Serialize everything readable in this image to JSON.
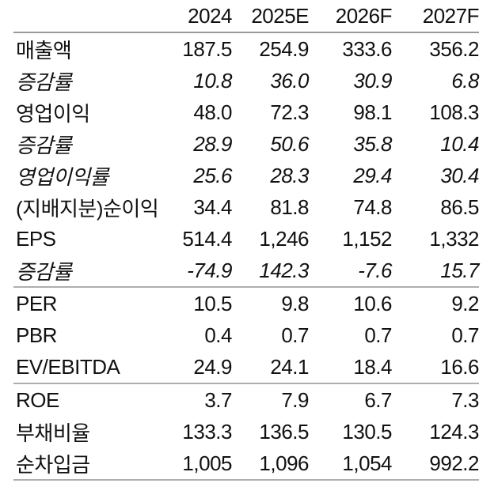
{
  "table": {
    "columns": [
      "",
      "2024",
      "2025E",
      "2026F",
      "2027F"
    ],
    "sections": [
      {
        "rows": [
          {
            "label": "매출액",
            "italic": false,
            "values": [
              "187.5",
              "254.9",
              "333.6",
              "356.2"
            ]
          },
          {
            "label": "증감률",
            "italic": true,
            "values": [
              "10.8",
              "36.0",
              "30.9",
              "6.8"
            ]
          },
          {
            "label": "영업이익",
            "italic": false,
            "values": [
              "48.0",
              "72.3",
              "98.1",
              "108.3"
            ]
          },
          {
            "label": "증감률",
            "italic": true,
            "values": [
              "28.9",
              "50.6",
              "35.8",
              "10.4"
            ]
          },
          {
            "label": "영업이익률",
            "italic": true,
            "values": [
              "25.6",
              "28.3",
              "29.4",
              "30.4"
            ]
          },
          {
            "label": "(지배지분)순이익",
            "italic": false,
            "values": [
              "34.4",
              "81.8",
              "74.8",
              "86.5"
            ]
          },
          {
            "label": "EPS",
            "italic": false,
            "values": [
              "514.4",
              "1,246",
              "1,152",
              "1,332"
            ]
          },
          {
            "label": "증감률",
            "italic": true,
            "values": [
              "-74.9",
              "142.3",
              "-7.6",
              "15.7"
            ]
          }
        ]
      },
      {
        "rows": [
          {
            "label": "PER",
            "italic": false,
            "values": [
              "10.5",
              "9.8",
              "10.6",
              "9.2"
            ]
          },
          {
            "label": "PBR",
            "italic": false,
            "values": [
              "0.4",
              "0.7",
              "0.7",
              "0.7"
            ]
          },
          {
            "label": "EV/EBITDA",
            "italic": false,
            "values": [
              "24.9",
              "24.1",
              "18.4",
              "16.6"
            ]
          }
        ]
      },
      {
        "rows": [
          {
            "label": "ROE",
            "italic": false,
            "values": [
              "3.7",
              "7.9",
              "6.7",
              "7.3"
            ]
          },
          {
            "label": "부채비율",
            "italic": false,
            "values": [
              "133.3",
              "136.5",
              "130.5",
              "124.3"
            ]
          },
          {
            "label": "순차입금",
            "italic": false,
            "values": [
              "1,005",
              "1,096",
              "1,054",
              "992.2"
            ]
          }
        ]
      }
    ],
    "colors": {
      "text": "#111111",
      "rule": "#aeaeae",
      "rule_head": "#9a9a9a",
      "background": "#ffffff"
    }
  }
}
